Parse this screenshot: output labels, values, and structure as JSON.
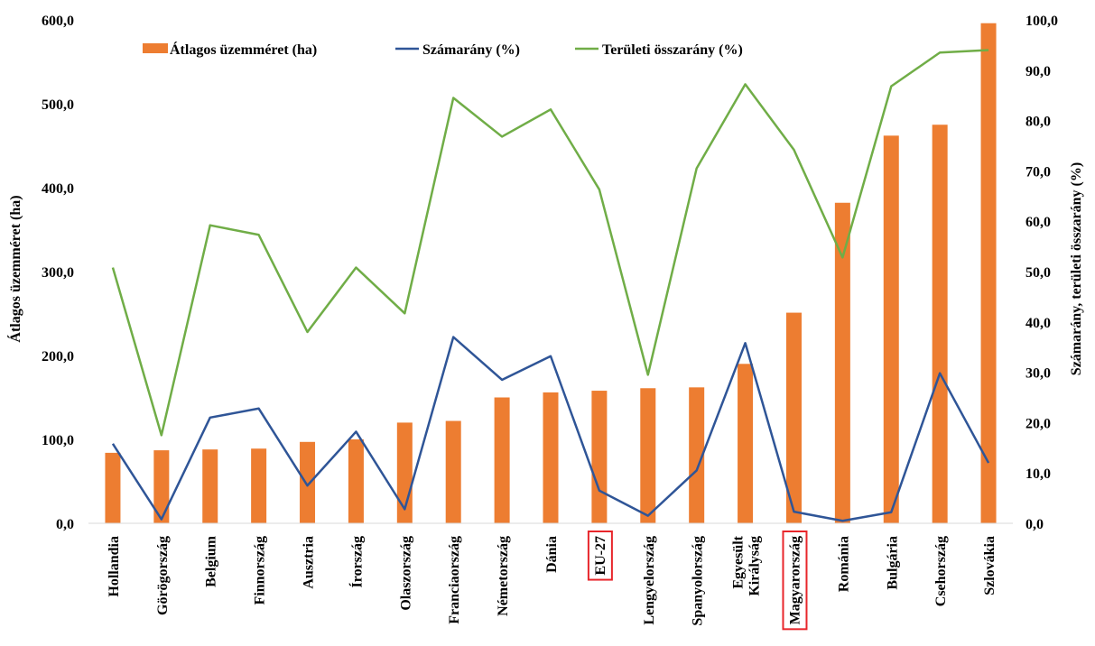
{
  "chart_data": {
    "type": "bar",
    "categories": [
      "Hollandia",
      "Görögország",
      "Belgium",
      "Finnország",
      "Ausztria",
      "Írország",
      "Olaszország",
      "Franciaország",
      "Németország",
      "Dánia",
      "EU-27",
      "Lengyelország",
      "Spanyolország",
      "Egyesült Királyság",
      "Magyarország",
      "Románia",
      "Bulgária",
      "Csehország",
      "Szlovákia"
    ],
    "highlighted_categories": [
      "EU-27",
      "Magyarország"
    ],
    "highlight_color": "#e8262b",
    "series": [
      {
        "name": "Átlagos üzemméret (ha)",
        "type": "bar",
        "axis": "left",
        "color": "#ed7d31",
        "values": [
          84,
          87,
          88,
          89,
          97,
          100,
          120,
          122,
          150,
          156,
          158,
          161,
          162,
          190,
          251,
          382,
          462,
          475,
          596
        ]
      },
      {
        "name": "Számarány (%)",
        "type": "line",
        "axis": "right",
        "color": "#2f5597",
        "values": [
          15.8,
          0.8,
          21.0,
          22.8,
          7.5,
          18.2,
          2.8,
          37.0,
          28.5,
          33.2,
          6.5,
          1.5,
          10.5,
          35.8,
          2.3,
          0.5,
          2.2,
          29.8,
          12.0
        ]
      },
      {
        "name": "Területi összarány (%)",
        "type": "line",
        "axis": "right",
        "color": "#70ad47",
        "values": [
          50.8,
          17.5,
          59.2,
          57.3,
          38.0,
          50.8,
          41.7,
          84.5,
          76.8,
          82.2,
          66.3,
          29.5,
          70.5,
          87.2,
          74.2,
          52.8,
          86.8,
          93.5,
          94.0
        ]
      }
    ],
    "y_left": {
      "label": "Átlagos üzemméret (ha)",
      "ylim": [
        0,
        600
      ],
      "ticks": [
        "0,0",
        "100,0",
        "200,0",
        "300,0",
        "400,0",
        "500,0",
        "600,0"
      ]
    },
    "y_right": {
      "label": "Számarány, területi összarány (%)",
      "ylim": [
        0,
        100
      ],
      "ticks": [
        "0,0",
        "10,0",
        "20,0",
        "30,0",
        "40,0",
        "50,0",
        "60,0",
        "70,0",
        "80,0",
        "90,0",
        "100,0"
      ]
    },
    "legend": {
      "position": "top-left"
    },
    "grid": false
  }
}
